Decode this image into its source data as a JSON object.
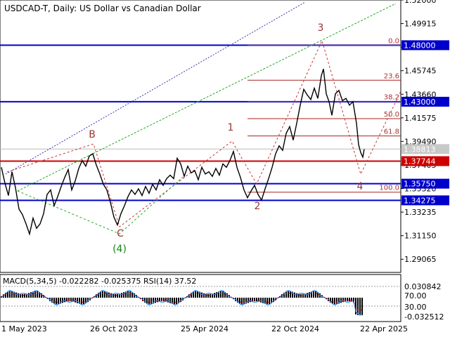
{
  "chart_data": {
    "type": "line",
    "title": "USDCAD-T, Daily:  US Dollar vs Canadian Dollar",
    "instrument": "USDCAD-T",
    "timeframe": "Daily",
    "x_ticks": [
      "1 May 2023",
      "26 Oct 2023",
      "25 Apr 2024",
      "22 Oct 2024",
      "22 Apr 2025"
    ],
    "price_ticks": [
      "1.52000",
      "1.49915",
      "1.47830",
      "1.45745",
      "1.43660",
      "1.41575",
      "1.39490",
      "1.37405",
      "1.35320",
      "1.33235",
      "1.31150",
      "1.29065"
    ],
    "ylim": [
      1.279,
      1.52
    ],
    "current_price": {
      "label": "1.38813",
      "value": 1.38813
    },
    "levels": [
      {
        "label": "1.48000",
        "value": 1.48,
        "color": "#0000cc"
      },
      {
        "label": "1.43000",
        "value": 1.43,
        "color": "#0000cc"
      },
      {
        "label": "1.37744",
        "value": 1.37744,
        "color": "#cc0000"
      },
      {
        "label": "1.35750",
        "value": 1.3575,
        "color": "#0000cc"
      },
      {
        "label": "1.34275",
        "value": 1.34275,
        "color": "#0000cc"
      }
    ],
    "fibonacci": [
      {
        "label": "0.0",
        "value": 1.48
      },
      {
        "label": "23.6",
        "value": 1.449
      },
      {
        "label": "38.2",
        "value": 1.4302
      },
      {
        "label": "50.0",
        "value": 1.415
      },
      {
        "label": "61.8",
        "value": 1.3997
      },
      {
        "label": "100.0",
        "value": 1.35
      }
    ],
    "wave_labels": [
      {
        "label": "B",
        "color": "#993333"
      },
      {
        "label": "1",
        "color": "#993333"
      },
      {
        "label": "3",
        "color": "#993333"
      },
      {
        "label": "2",
        "color": "#993333"
      },
      {
        "label": "4",
        "color": "#993333"
      },
      {
        "label": "C",
        "color": "#993333"
      },
      {
        "label": "(4)",
        "color": "#118811"
      }
    ],
    "price_series": [
      [
        0,
        1.372
      ],
      [
        5,
        1.358
      ],
      [
        10,
        1.347
      ],
      [
        15,
        1.368
      ],
      [
        20,
        1.354
      ],
      [
        25,
        1.335
      ],
      [
        30,
        1.33
      ],
      [
        35,
        1.322
      ],
      [
        40,
        1.313
      ],
      [
        45,
        1.327
      ],
      [
        50,
        1.318
      ],
      [
        55,
        1.322
      ],
      [
        60,
        1.331
      ],
      [
        65,
        1.348
      ],
      [
        70,
        1.352
      ],
      [
        75,
        1.338
      ],
      [
        80,
        1.346
      ],
      [
        85,
        1.355
      ],
      [
        90,
        1.363
      ],
      [
        95,
        1.37
      ],
      [
        100,
        1.352
      ],
      [
        105,
        1.36
      ],
      [
        110,
        1.371
      ],
      [
        115,
        1.378
      ],
      [
        120,
        1.373
      ],
      [
        125,
        1.382
      ],
      [
        130,
        1.384
      ],
      [
        135,
        1.374
      ],
      [
        140,
        1.366
      ],
      [
        145,
        1.357
      ],
      [
        150,
        1.352
      ],
      [
        155,
        1.341
      ],
      [
        160,
        1.328
      ],
      [
        165,
        1.321
      ],
      [
        170,
        1.331
      ],
      [
        175,
        1.338
      ],
      [
        180,
        1.346
      ],
      [
        185,
        1.352
      ],
      [
        190,
        1.348
      ],
      [
        195,
        1.353
      ],
      [
        200,
        1.347
      ],
      [
        205,
        1.355
      ],
      [
        210,
        1.349
      ],
      [
        215,
        1.357
      ],
      [
        220,
        1.352
      ],
      [
        225,
        1.361
      ],
      [
        230,
        1.356
      ],
      [
        235,
        1.362
      ],
      [
        240,
        1.365
      ],
      [
        245,
        1.362
      ],
      [
        250,
        1.38
      ],
      [
        255,
        1.375
      ],
      [
        260,
        1.364
      ],
      [
        265,
        1.373
      ],
      [
        270,
        1.367
      ],
      [
        275,
        1.369
      ],
      [
        280,
        1.361
      ],
      [
        285,
        1.372
      ],
      [
        290,
        1.366
      ],
      [
        295,
        1.368
      ],
      [
        300,
        1.364
      ],
      [
        305,
        1.371
      ],
      [
        310,
        1.365
      ],
      [
        315,
        1.375
      ],
      [
        320,
        1.372
      ],
      [
        325,
        1.378
      ],
      [
        330,
        1.386
      ],
      [
        335,
        1.372
      ],
      [
        340,
        1.363
      ],
      [
        345,
        1.352
      ],
      [
        350,
        1.345
      ],
      [
        355,
        1.351
      ],
      [
        360,
        1.356
      ],
      [
        365,
        1.348
      ],
      [
        370,
        1.343
      ],
      [
        375,
        1.353
      ],
      [
        380,
        1.362
      ],
      [
        385,
        1.372
      ],
      [
        390,
        1.384
      ],
      [
        395,
        1.391
      ],
      [
        400,
        1.387
      ],
      [
        405,
        1.402
      ],
      [
        410,
        1.408
      ],
      [
        415,
        1.396
      ],
      [
        420,
        1.411
      ],
      [
        425,
        1.427
      ],
      [
        430,
        1.441
      ],
      [
        435,
        1.436
      ],
      [
        440,
        1.432
      ],
      [
        445,
        1.442
      ],
      [
        450,
        1.433
      ],
      [
        455,
        1.453
      ],
      [
        458,
        1.459
      ],
      [
        462,
        1.437
      ],
      [
        466,
        1.43
      ],
      [
        470,
        1.418
      ],
      [
        475,
        1.437
      ],
      [
        480,
        1.44
      ],
      [
        485,
        1.431
      ],
      [
        490,
        1.433
      ],
      [
        495,
        1.427
      ],
      [
        500,
        1.43
      ],
      [
        505,
        1.411
      ],
      [
        508,
        1.392
      ],
      [
        511,
        1.385
      ],
      [
        514,
        1.381
      ],
      [
        516,
        1.388
      ]
    ],
    "indicator": {
      "label": "MACD(5,34,5) -0.022282 -0.025375 RSI(14) 37.52",
      "ticks": [
        "0.030842",
        "70.00",
        "30.00",
        "-0.032512"
      ]
    }
  }
}
